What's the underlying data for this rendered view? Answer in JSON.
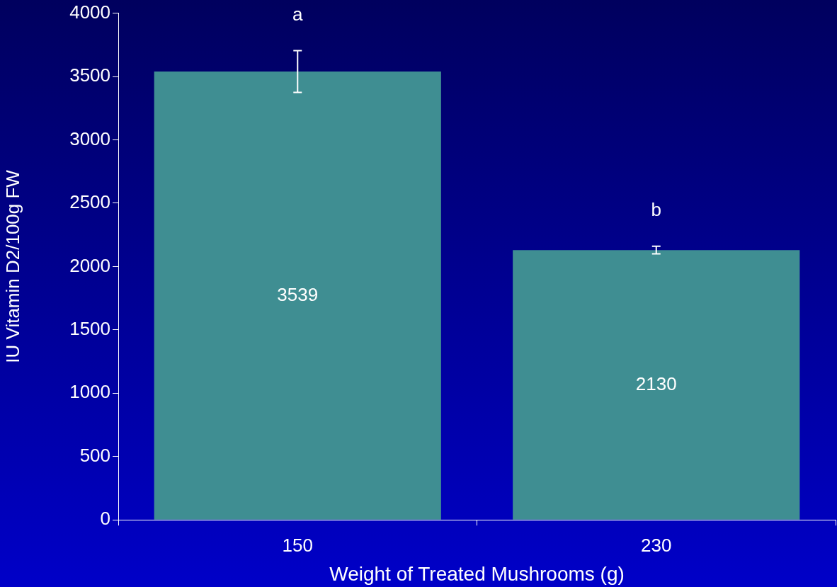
{
  "chart_data": {
    "type": "bar",
    "xlabel": "Weight of Treated Mushrooms (g)",
    "ylabel": "IU Vitamin D2/100g FW",
    "categories": [
      "150",
      "230"
    ],
    "values": [
      3539,
      2130
    ],
    "errors": [
      165,
      30
    ],
    "color": "#3f8e92",
    "ylim": [
      0,
      4000
    ],
    "yticks": [
      0,
      500,
      1000,
      1500,
      2000,
      2500,
      3000,
      3500,
      4000
    ],
    "data_labels": true,
    "grid": false,
    "legend": false,
    "annotations": [
      "a",
      "b"
    ]
  }
}
